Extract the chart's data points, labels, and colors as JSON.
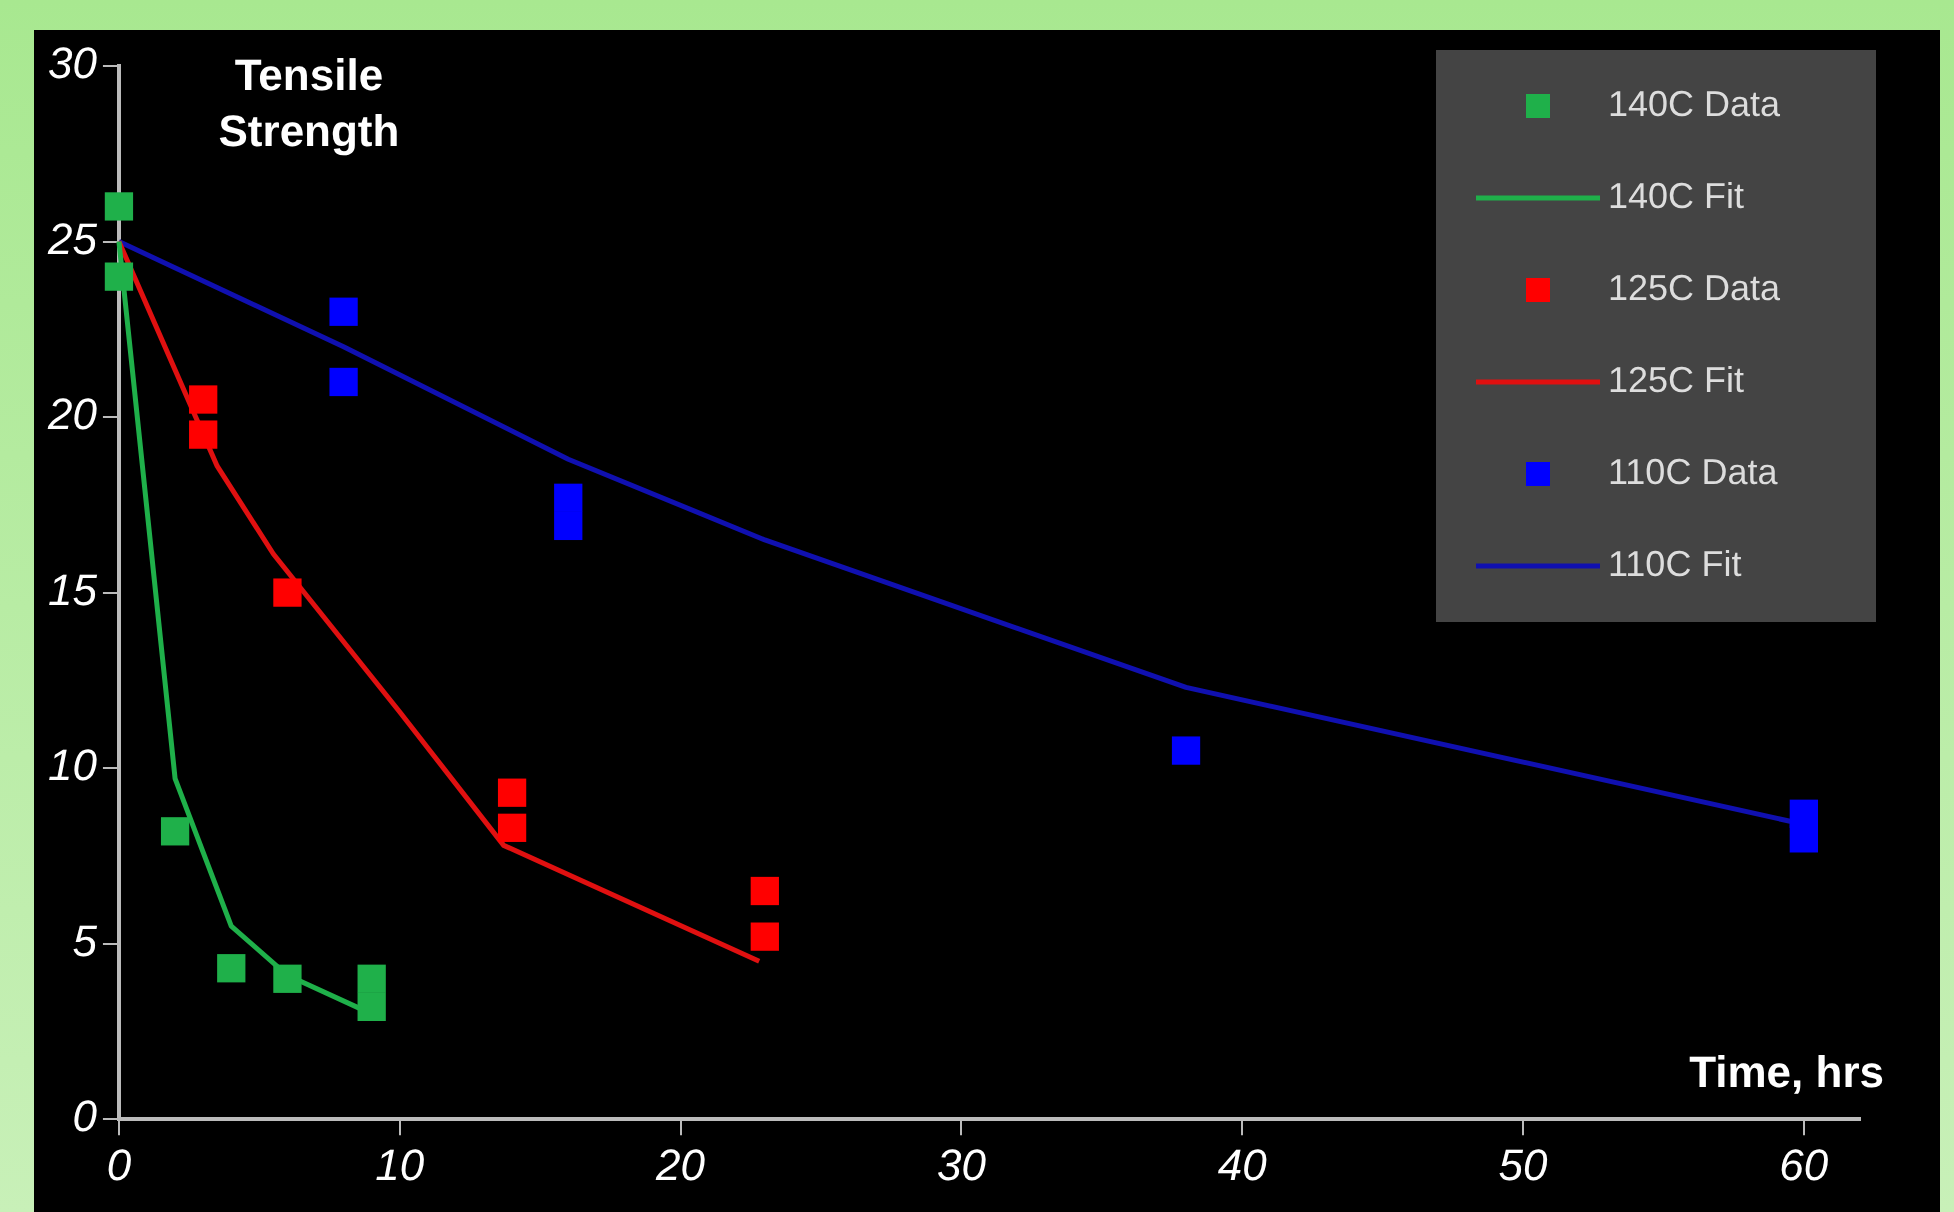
{
  "chart_data": {
    "type": "scatter",
    "ylabel": "Tensile Strength",
    "xlabel": "Time, hrs",
    "xlim": [
      0,
      62
    ],
    "ylim": [
      0,
      30
    ],
    "xticks": [
      0,
      10,
      20,
      30,
      40,
      50,
      60
    ],
    "yticks": [
      0,
      5,
      10,
      15,
      20,
      25,
      30
    ],
    "grid": false,
    "legend": "top right",
    "marker": "square",
    "series": [
      {
        "name": "140C Data",
        "type": "scatter",
        "color": "#1fb04a",
        "x": [
          0,
          0,
          2,
          4,
          6,
          9,
          9
        ],
        "values": [
          26,
          24,
          8.2,
          4.3,
          4,
          4,
          3.2
        ]
      },
      {
        "name": "140C Fit",
        "type": "line",
        "marker": "none",
        "color": "#1fb04a",
        "x": [
          0,
          2,
          4,
          6,
          9
        ],
        "values": [
          25,
          9.7,
          5.5,
          4.1,
          3
        ]
      },
      {
        "name": "125C Data",
        "type": "scatter",
        "color": "#ff0000",
        "x": [
          3,
          3,
          6,
          14,
          14,
          23,
          23
        ],
        "values": [
          20.5,
          19.5,
          15,
          9.3,
          8.3,
          6.5,
          5.2
        ]
      },
      {
        "name": "125C Fit",
        "type": "line",
        "marker": "none",
        "color": "#e01010",
        "x": [
          0,
          3.5,
          5.5,
          10,
          13.7,
          22.8
        ],
        "values": [
          25,
          18.6,
          16.1,
          11.6,
          7.8,
          4.5
        ]
      },
      {
        "name": "110C Data",
        "type": "scatter",
        "color": "#0000ff",
        "x": [
          8,
          8,
          16,
          16,
          38,
          60,
          60
        ],
        "values": [
          23,
          21,
          17.7,
          16.9,
          10.5,
          8.7,
          8
        ]
      },
      {
        "name": "110C Fit",
        "type": "line",
        "marker": "none",
        "color": "#1010b0",
        "x": [
          0,
          8,
          16,
          23,
          38,
          60
        ],
        "values": [
          25,
          22,
          18.8,
          16.5,
          12.3,
          8.4
        ]
      }
    ]
  }
}
